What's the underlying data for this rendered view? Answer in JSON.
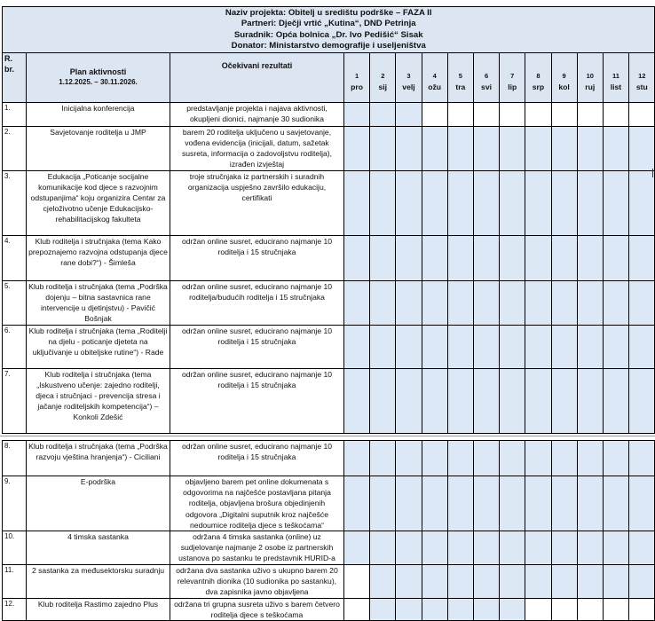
{
  "header": {
    "project": "Naziv projekta: Obitelj u središtu podrške – FAZA II",
    "partners": "Partneri: Dječji vrtić „Kutina“, DND Petrinja",
    "associate": "Suradnik: Opća bolnica „Dr. Ivo Pedišić“ Sisak",
    "donor": "Donator: Ministarstvo demografije i useljeništva"
  },
  "columns": {
    "nr_line1": "R.",
    "nr_line2": "br.",
    "plan_line1": "Plan aktivnosti",
    "plan_line2": "1.12.2025. – 30.11.2026.",
    "results": "Očekivani rezultati",
    "months": [
      {
        "num": "1",
        "name": "pro"
      },
      {
        "num": "2",
        "name": "sij"
      },
      {
        "num": "3",
        "name": "velj"
      },
      {
        "num": "4",
        "name": "ožu"
      },
      {
        "num": "5",
        "name": "tra"
      },
      {
        "num": "6",
        "name": "svi"
      },
      {
        "num": "7",
        "name": "lip"
      },
      {
        "num": "8",
        "name": "srp"
      },
      {
        "num": "9",
        "name": "kol"
      },
      {
        "num": "10",
        "name": "ruj"
      },
      {
        "num": "11",
        "name": "list"
      },
      {
        "num": "12",
        "name": "stu"
      }
    ]
  },
  "shading_color": "#dce8f5",
  "rows": [
    {
      "nr": "1.",
      "activity": "Inicijalna konferencija",
      "result": "predstavljanje projekta i najava aktivnosti, okupljeni dionici, najmanje 30 sudionika",
      "active_months": [
        1,
        2,
        3
      ]
    },
    {
      "nr": "2.",
      "activity": "Savjetovanje roditelja u JMP",
      "result": "barem 20 roditelja uključeno u savjetovanje, vođena evidencija (inicijali, datum, sažetak susreta, informacija o zadovoljstvu roditelja), izrađen izvještaj",
      "active_months": [
        1,
        2,
        3,
        4,
        5,
        6,
        7,
        8,
        9,
        10,
        11,
        12
      ]
    },
    {
      "nr": "3.",
      "activity": "Edukacija „Poticanje socijalne komunikacije kod djece s razvojnim odstupanjima“ koju organizira Centar za cjeloživotno učenje Edukacijsko-rehabilitacijskog fakulteta",
      "result": "troje stručnjaka iz partnerskih i suradnih organizacija uspješno završilo edukaciju, certifikati",
      "active_months": [
        1,
        2,
        3,
        4,
        5,
        6,
        7,
        8,
        9,
        10,
        11,
        12
      ]
    },
    {
      "nr": "4.",
      "activity": "Klub roditelja i stručnjaka (tema Kako prepoznajemo razvojna odstupanja djece rane dobi?“) - Šimleša",
      "result": "održan online susret, educirano najmanje 10 roditelja i 15 stručnjaka",
      "active_months": [
        1,
        2,
        3,
        4,
        5,
        6,
        7,
        8,
        9,
        10,
        11,
        12
      ]
    },
    {
      "nr": "5.",
      "activity": "Klub roditelja i stručnjaka (tema „Podrška dojenju – bitna sastavnica rane intervencije u djetinjstvu) - Pavičić Bošnjak",
      "result": "održan online susret, educirano najmanje 10 roditelja/budućih roditelja i 15 stručnjaka",
      "active_months": [
        1,
        2,
        3,
        4,
        5,
        6,
        7,
        8,
        9,
        10,
        11,
        12
      ]
    },
    {
      "nr": "6.",
      "activity": "Klub roditelja i stručnjaka (tema „Roditelji na djelu - poticanje djeteta na uključivanje u obiteljske rutine“) - Rade",
      "result": "održan online susret, educirano najmanje 10 roditelja i 15 stručnjaka",
      "active_months": [
        1,
        2,
        3,
        4,
        5,
        6,
        7,
        8,
        9,
        10,
        11,
        12
      ]
    },
    {
      "nr": "7.",
      "activity": "Klub roditelja i stručnjaka (tema „Iskustveno učenje: zajedno roditelji, djeca i stručnjaci - prevencija stresa i jačanje roditeljskih kompetencija“) – Konkoli Zdešić",
      "result": "održan online susret, educirano najmanje 10 roditelja i 15 stručnjaka",
      "active_months": [
        1,
        2,
        3,
        4,
        5,
        6,
        7,
        8,
        9,
        10,
        11,
        12
      ]
    },
    {
      "nr": "8.",
      "activity": "Klub roditelja i stručnjaka (tema „Podrška razvoju vještina hranjenja“) - Ciciliani",
      "result": "održan online susret, educirano najmanje 10 roditelja i 15 stručnjaka",
      "active_months": [
        1,
        2,
        3,
        4,
        5,
        6,
        7,
        8,
        9,
        10,
        11,
        12
      ]
    },
    {
      "nr": "9.",
      "activity": "E-podrška",
      "result": "objavljeno barem pet online dokumenata s odgovorima na najčešće postavljana pitanja roditelja, objavljena brošura objedinjenih odgovora „Digitalni suputnik kroz najčešće nedoumice roditelja djece s teškoćama“",
      "active_months": [
        1,
        2,
        3,
        4,
        5,
        6,
        7,
        8,
        9,
        10,
        11,
        12
      ]
    },
    {
      "nr": "10.",
      "activity": "4 timska sastanka",
      "result": "održana 4 timska sastanka (online) uz sudjelovanje najmanje 2 osobe iz partnerskih ustanova po sastanku te predstavnik HURID-a",
      "active_months": [
        1,
        2,
        3,
        4,
        5,
        6,
        7,
        8,
        9,
        10,
        11,
        12
      ]
    },
    {
      "nr": "11.",
      "activity": "2 sastanka za međusektorsku suradnju",
      "result": "održana dva sastanka uživo s ukupno barem 20 relevantnih dionika (10 sudionika po sastanku), dva zapisnika javno objavljena",
      "active_months": [
        2,
        3,
        4,
        5,
        6,
        7,
        8,
        9,
        10,
        11,
        12
      ]
    },
    {
      "nr": "12.",
      "activity": "Klub roditelja Rastimo zajedno Plus",
      "result": "održana tri grupna susreta uživo s barem četvero roditelja djece s teškoćama",
      "active_months": [
        2,
        3,
        4,
        5,
        6,
        7
      ]
    }
  ]
}
